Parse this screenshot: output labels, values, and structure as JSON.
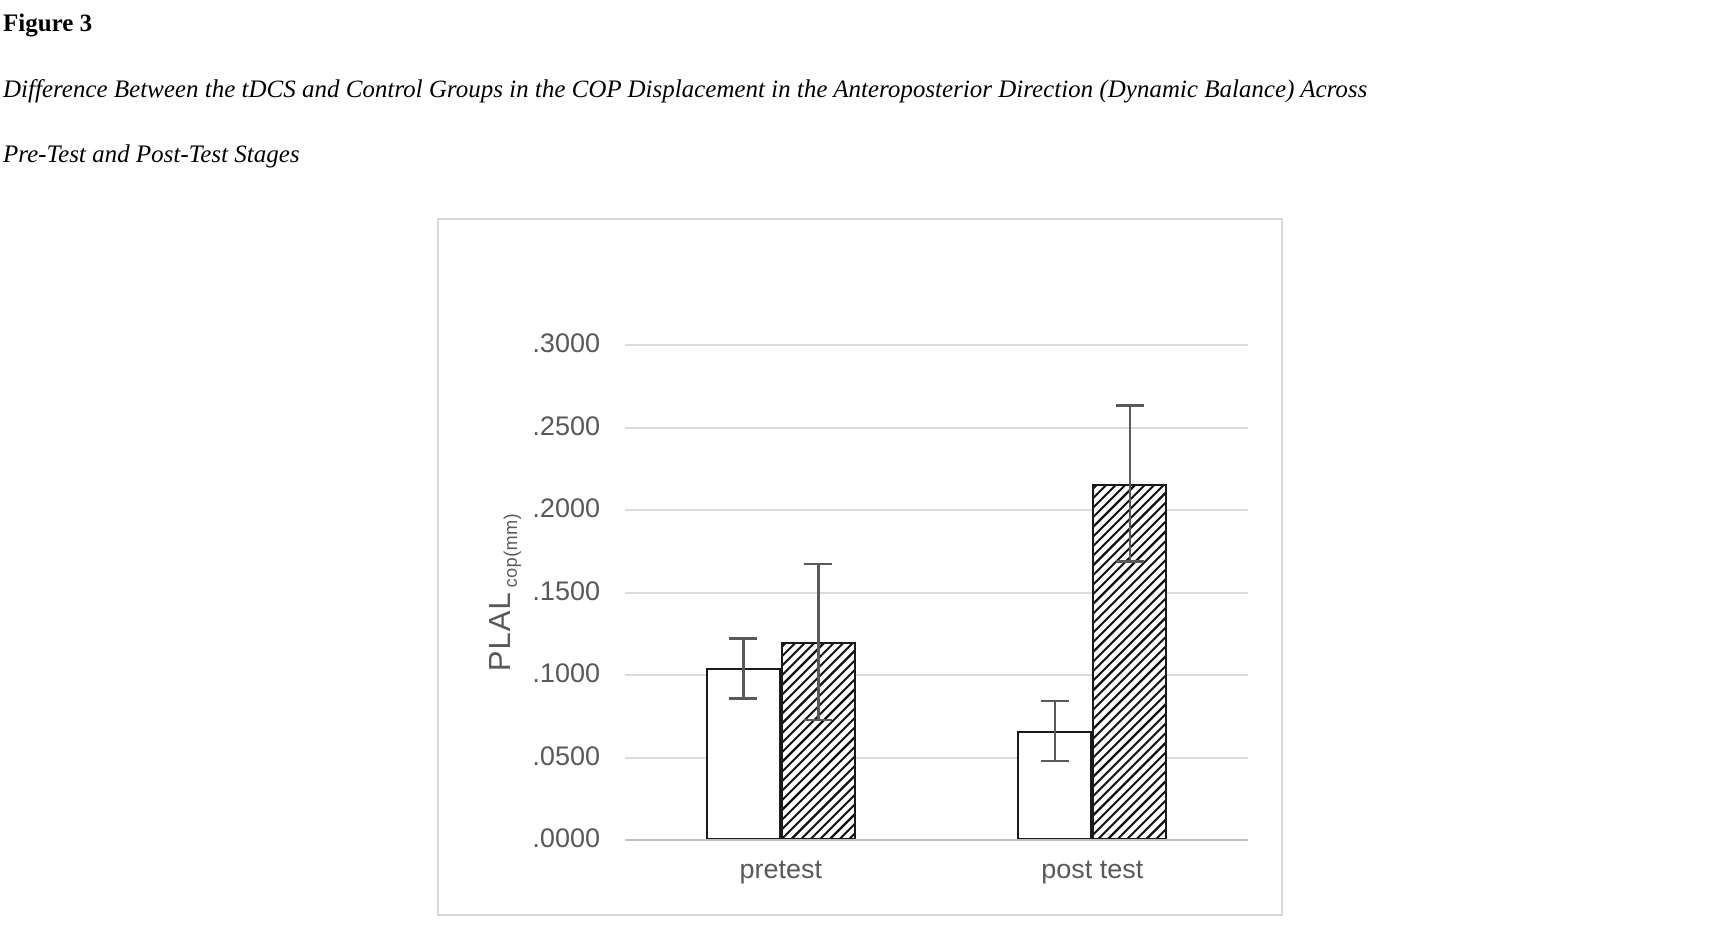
{
  "document": {
    "figure_label": "Figure 3",
    "caption_line1": "Difference Between the tDCS and Control Groups in the COP Displacement in the Anteroposterior Direction (Dynamic Balance) Across",
    "caption_line2": "Pre-Test and Post-Test Stages"
  },
  "chart_data": {
    "type": "bar",
    "title": "",
    "categories": [
      "pretest",
      "post test"
    ],
    "series": [
      {
        "name": "white-solid-bar",
        "pattern": "solid",
        "values": [
          0.104,
          0.066
        ],
        "errors": [
          0.019,
          0.019
        ]
      },
      {
        "name": "diagonal-hatched-bar",
        "pattern": "hatch",
        "values": [
          0.12,
          0.216
        ],
        "errors": [
          0.048,
          0.048
        ]
      }
    ],
    "ylabel_main": "PLAL",
    "ylabel_sub": "cop(mm)",
    "yticks": [
      ".0000",
      ".0500",
      ".1000",
      ".1500",
      ".2000",
      ".2500",
      ".3000"
    ],
    "ylim": [
      0,
      0.3
    ],
    "grid": "horizontal-on",
    "legend": "none",
    "colors": {
      "bar_outline": "#1a1a1a",
      "hatch": "#111111",
      "error_bar": "#595959",
      "gridline": "#dcdcdc",
      "axis_baseline": "#c0c0c0",
      "tick_text": "#595959",
      "chart_border": "#d9d9d9"
    }
  }
}
